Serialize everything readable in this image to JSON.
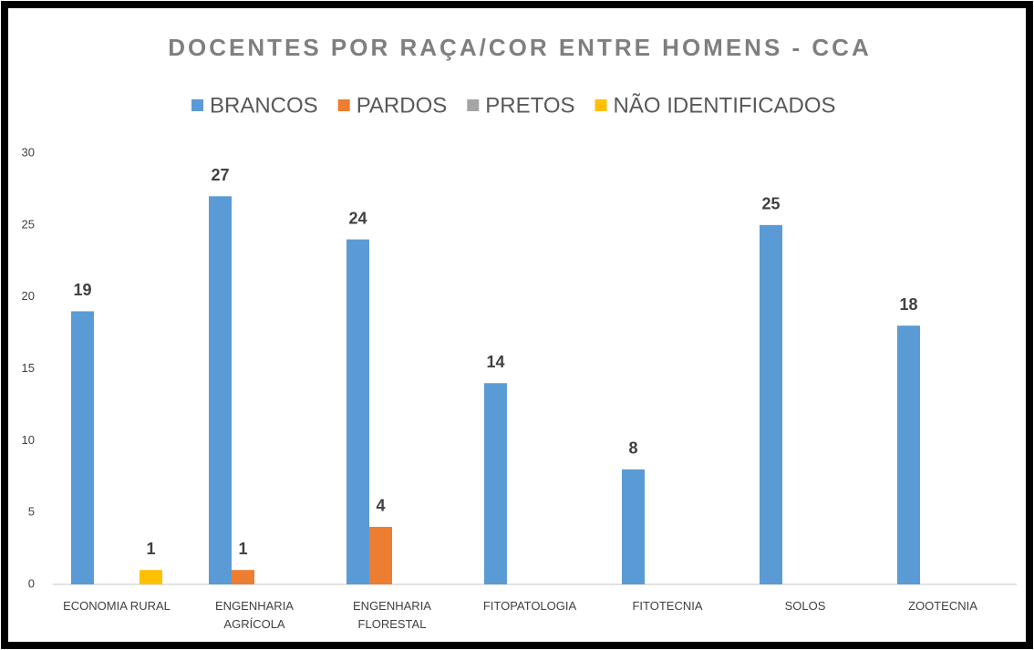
{
  "chart_data": {
    "type": "bar",
    "title": "DOCENTES POR RAÇA/COR ENTRE HOMENS - CCA",
    "categories": [
      "ECONOMIA RURAL",
      "ENGENHARIA\nAGRÍCOLA",
      "ENGENHARIA\nFLORESTAL",
      "FITOPATOLOGIA",
      "FITOTECNIA",
      "SOLOS",
      "ZOOTECNIA"
    ],
    "series": [
      {
        "name": "BRANCOS",
        "color": "#5b9bd5",
        "values": [
          19,
          27,
          24,
          14,
          8,
          25,
          18
        ]
      },
      {
        "name": "PARDOS",
        "color": "#ed7d31",
        "values": [
          null,
          1,
          4,
          null,
          null,
          null,
          null
        ]
      },
      {
        "name": "PRETOS",
        "color": "#a5a5a5",
        "values": [
          null,
          null,
          null,
          null,
          null,
          null,
          null
        ]
      },
      {
        "name": "NÃO IDENTIFICADOS",
        "color": "#ffc000",
        "values": [
          1,
          null,
          null,
          null,
          null,
          null,
          null
        ]
      }
    ],
    "ylim": [
      0,
      30
    ],
    "yticks": [
      0,
      5,
      10,
      15,
      20,
      25,
      30
    ],
    "grid": false,
    "legend": "top"
  }
}
